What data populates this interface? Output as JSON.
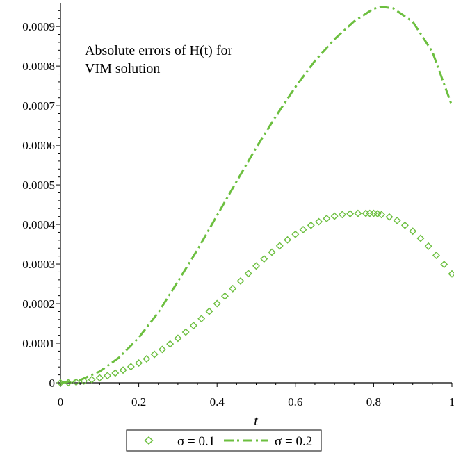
{
  "chart_data": {
    "type": "line",
    "title": "",
    "annotation_line1": "Absolute errors of H(t) for",
    "annotation_line2": "VIM solution",
    "xlabel": "t",
    "ylabel": "",
    "xlim": [
      0,
      1
    ],
    "ylim": [
      0,
      0.00095
    ],
    "grid": false,
    "legend_position": "bottom",
    "x_ticks": [
      0,
      0.2,
      0.4,
      0.6,
      0.8,
      1
    ],
    "x_tick_labels": [
      "0",
      "0.2",
      "0.4",
      "0.6",
      "0.8",
      "1"
    ],
    "y_ticks": [
      0,
      0.0001,
      0.0002,
      0.0003,
      0.0004,
      0.0005,
      0.0006,
      0.0007,
      0.0008,
      0.0009
    ],
    "y_tick_labels": [
      "0",
      "0.0001",
      "0.0002",
      "0.0003",
      "0.0004",
      "0.0005",
      "0.0006",
      "0.0007",
      "0.0008",
      "0.0009"
    ],
    "series": [
      {
        "name": "σ = 0.1",
        "style": "diamond-markers",
        "color": "#6cbf3f",
        "x": [
          0,
          0.02,
          0.04,
          0.06,
          0.08,
          0.1,
          0.12,
          0.14,
          0.16,
          0.18,
          0.2,
          0.22,
          0.24,
          0.26,
          0.28,
          0.3,
          0.32,
          0.34,
          0.36,
          0.38,
          0.4,
          0.42,
          0.44,
          0.46,
          0.48,
          0.5,
          0.52,
          0.54,
          0.56,
          0.58,
          0.6,
          0.62,
          0.64,
          0.66,
          0.68,
          0.7,
          0.72,
          0.74,
          0.76,
          0.78,
          0.79,
          0.8,
          0.81,
          0.82,
          0.84,
          0.86,
          0.88,
          0.9,
          0.92,
          0.94,
          0.96,
          0.98,
          1
        ],
        "y": [
          0,
          5e-07,
          2e-06,
          4.5e-06,
          8e-06,
          1.25e-05,
          1.8e-05,
          2.45e-05,
          3.2e-05,
          4.05e-05,
          5e-05,
          6.05e-05,
          7.2e-05,
          8.45e-05,
          9.8e-05,
          0.0001125,
          0.000128,
          0.0001445,
          0.000162,
          0.0001805,
          0.0002,
          0.000219,
          0.000238,
          0.000257,
          0.000276,
          0.000295,
          0.000313,
          0.00033,
          0.000346,
          0.000361,
          0.000375,
          0.000387,
          0.000398,
          0.000407,
          0.000415,
          0.000421,
          0.000425,
          0.000427,
          0.000428,
          0.000428,
          0.000428,
          0.000428,
          0.000427,
          0.000425,
          0.000419,
          0.00041,
          0.000398,
          0.000383,
          0.000365,
          0.000345,
          0.000322,
          0.000299,
          0.000275
        ]
      },
      {
        "name": "σ = 0.2",
        "style": "dash-dot-line",
        "color": "#6cbf3f",
        "x": [
          0,
          0.05,
          0.1,
          0.15,
          0.2,
          0.25,
          0.3,
          0.35,
          0.4,
          0.45,
          0.5,
          0.55,
          0.6,
          0.65,
          0.7,
          0.75,
          0.8,
          0.82,
          0.85,
          0.9,
          0.95,
          1
        ],
        "y": [
          0,
          7.1e-06,
          2.85e-05,
          6.41e-05,
          0.000114,
          0.000178,
          0.000256,
          0.000336,
          0.000423,
          0.000509,
          0.000594,
          0.000673,
          0.000747,
          0.000813,
          0.000868,
          0.000913,
          0.000945,
          0.00095,
          0.000946,
          0.000912,
          0.000836,
          0.0007
        ]
      }
    ]
  }
}
